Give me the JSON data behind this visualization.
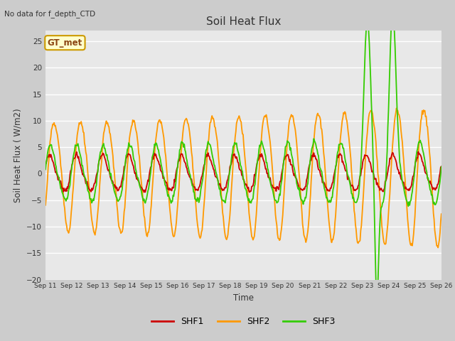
{
  "title": "Soil Heat Flux",
  "subtitle": "No data for f_depth_CTD",
  "xlabel": "Time",
  "ylabel": "Soil Heat Flux ( W/m2)",
  "ylim": [
    -20,
    27
  ],
  "yticks": [
    -20,
    -15,
    -10,
    -5,
    0,
    5,
    10,
    15,
    20,
    25
  ],
  "legend_label": "GT_met",
  "colors": {
    "SHF1": "#cc0000",
    "SHF2": "#ff9900",
    "SHF3": "#33cc00"
  },
  "fig_bg": "#cccccc",
  "plot_bg": "#e8e8e8",
  "grid_color": "#ffffff",
  "n_points": 600,
  "x_start": 11,
  "x_end": 26,
  "xtick_labels": [
    "Sep 11",
    "Sep 12",
    "Sep 13",
    "Sep 14",
    "Sep 15",
    "Sep 16",
    "Sep 17",
    "Sep 18",
    "Sep 19",
    "Sep 20",
    "Sep 21",
    "Sep 22",
    "Sep 23",
    "Sep 24",
    "Sep 25",
    "Sep 26"
  ],
  "xtick_positions": [
    11,
    12,
    13,
    14,
    15,
    16,
    17,
    18,
    19,
    20,
    21,
    22,
    23,
    24,
    25,
    26
  ]
}
